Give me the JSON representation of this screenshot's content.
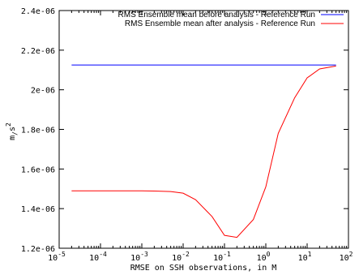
{
  "chart_data": {
    "type": "line",
    "xscale": "log",
    "xlim": [
      1e-05,
      100
    ],
    "ylim": [
      1.2e-06,
      2.4e-06
    ],
    "grid": false,
    "legend_position": "top-right",
    "xlabel": "RMSE on SSH observations, in M",
    "ylabel": "m/s^2",
    "ylabel_parts": {
      "base": "m",
      "sub": "/",
      "unit": "s",
      "sup": "2"
    },
    "x_ticks": [
      {
        "value": 1e-05,
        "base": "10",
        "exp": "-5"
      },
      {
        "value": 0.0001,
        "base": "10",
        "exp": "-4"
      },
      {
        "value": 0.001,
        "base": "10",
        "exp": "-3"
      },
      {
        "value": 0.01,
        "base": "10",
        "exp": "-2"
      },
      {
        "value": 0.1,
        "base": "10",
        "exp": "-1"
      },
      {
        "value": 1,
        "base": "10",
        "exp": "0"
      },
      {
        "value": 10,
        "base": "10",
        "exp": "1"
      },
      {
        "value": 100,
        "base": "10",
        "exp": "2"
      }
    ],
    "y_ticks": [
      {
        "value": 1.2e-06,
        "label": "1.2e-06"
      },
      {
        "value": 1.4e-06,
        "label": "1.4e-06"
      },
      {
        "value": 1.6e-06,
        "label": "1.6e-06"
      },
      {
        "value": 1.8e-06,
        "label": "1.8e-06"
      },
      {
        "value": 2e-06,
        "label": "2e-06"
      },
      {
        "value": 2.2e-06,
        "label": "2.2e-06"
      },
      {
        "value": 2.4e-06,
        "label": "2.4e-06"
      }
    ],
    "series": [
      {
        "name": "RMS Ensemble mean before analysis - Reference Run",
        "color": "#0000ff",
        "x": [
          2e-05,
          50
        ],
        "y": [
          2.125e-06,
          2.125e-06
        ]
      },
      {
        "name": "RMS Ensemble mean after analysis - Reference Run",
        "color": "#ff0000",
        "x": [
          2e-05,
          0.0001,
          0.001,
          0.002,
          0.005,
          0.01,
          0.02,
          0.05,
          0.1,
          0.2,
          0.5,
          1,
          2,
          5,
          10,
          20,
          50
        ],
        "y": [
          1.49e-06,
          1.49e-06,
          1.49e-06,
          1.489e-06,
          1.486e-06,
          1.478e-06,
          1.445e-06,
          1.36e-06,
          1.265e-06,
          1.255e-06,
          1.345e-06,
          1.51e-06,
          1.78e-06,
          1.96e-06,
          2.06e-06,
          2.105e-06,
          2.12e-06
        ]
      }
    ]
  }
}
